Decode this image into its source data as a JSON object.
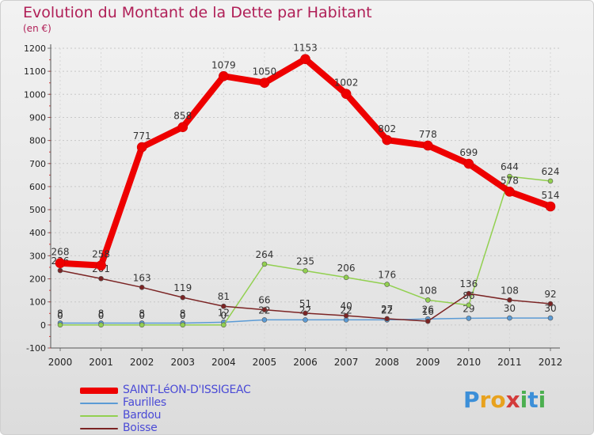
{
  "title": "Evolution du Montant de la Dette par Habitant",
  "subtitle": "(en €)",
  "logo": {
    "text": "Proxiti",
    "letters": [
      [
        "P",
        "#3c8fd8"
      ],
      [
        "r",
        "#e8a21e"
      ],
      [
        "o",
        "#e8a21e"
      ],
      [
        "x",
        "#d33b3b"
      ],
      [
        "i",
        "#4caf50"
      ],
      [
        "t",
        "#3c8fd8"
      ],
      [
        "i",
        "#4caf50"
      ]
    ]
  },
  "chart_data": {
    "type": "line",
    "title": "Evolution du Montant de la Dette par Habitant",
    "subtitle": "(en €)",
    "x": [
      "2000",
      "2001",
      "2002",
      "2003",
      "2004",
      "2005",
      "2006",
      "2007",
      "2008",
      "2009",
      "2010",
      "2011",
      "2012"
    ],
    "ylim": [
      -100,
      1200
    ],
    "yticks": [
      -100,
      0,
      100,
      200,
      300,
      400,
      500,
      600,
      700,
      800,
      900,
      1000,
      1100,
      1200
    ],
    "grid": true,
    "legend_position": "bottom-left",
    "series": [
      {
        "name": "SAINT-LéON-D'ISSIGEAC",
        "color": "#ee0000",
        "width": 8,
        "values": [
          268,
          258,
          771,
          858,
          1079,
          1050,
          1153,
          1002,
          802,
          778,
          699,
          578,
          514
        ],
        "labels": [
          "268",
          "258",
          "771",
          "858",
          "1079",
          "1050",
          "1153",
          "1002",
          "802",
          "778",
          "699",
          "578",
          "514"
        ]
      },
      {
        "name": "Faurilles",
        "color": "#5b9bd5",
        "width": 1.5,
        "values": [
          8,
          8,
          8,
          8,
          12,
          22,
          22,
          22,
          22,
          26,
          29,
          30,
          30
        ],
        "labels": [
          "8",
          "8",
          "8",
          "8",
          "12",
          "22",
          "22",
          "22",
          "22",
          "26",
          "29",
          "30",
          "30"
        ]
      },
      {
        "name": "Bardou",
        "color": "#92d050",
        "width": 1.5,
        "values": [
          0,
          0,
          0,
          0,
          0,
          264,
          235,
          206,
          176,
          108,
          86,
          644,
          624
        ],
        "labels": [
          "0",
          "0",
          "0",
          "0",
          "0",
          "264",
          "235",
          "206",
          "176",
          "108",
          "86",
          "644",
          "624"
        ]
      },
      {
        "name": "Boisse",
        "color": "#7b2424",
        "width": 1.5,
        "values": [
          236,
          201,
          163,
          119,
          81,
          66,
          51,
          40,
          27,
          16,
          136,
          108,
          92
        ],
        "labels": [
          "236",
          "201",
          "163",
          "119",
          "81",
          "66",
          "51",
          "40",
          "27",
          "16",
          "136",
          "108",
          "92"
        ]
      }
    ]
  }
}
